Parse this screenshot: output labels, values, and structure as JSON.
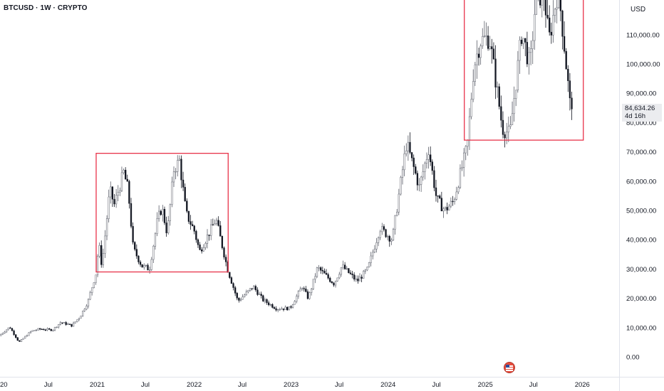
{
  "header": {
    "symbol_title": "BTCUSD · 1W · CRYPTO",
    "currency": "USD"
  },
  "price_tag": {
    "price": "84,634.26",
    "countdown": "4d 16h"
  },
  "colors": {
    "candle": "#131722",
    "candle_up": "#5d606b",
    "box": "#e8334a",
    "grid_text": "#131722",
    "tag_bg": "#ebecef"
  },
  "icons": {
    "event": "us-flag-icon"
  },
  "chart_data": {
    "type": "candlestick",
    "title": "BTCUSD · 1W · CRYPTO",
    "y_unit": "USD",
    "ylim": [
      -12000,
      126000
    ],
    "xlim": [
      "2020-01-01",
      "2026-05-01"
    ],
    "y_ticks": [
      0,
      10000,
      20000,
      30000,
      40000,
      50000,
      60000,
      70000,
      80000,
      90000,
      100000,
      110000
    ],
    "y_tick_labels": [
      "0.00",
      "10,000.00",
      "20,000.00",
      "30,000.00",
      "40,000.00",
      "50,000.00",
      "60,000.00",
      "70,000.00",
      "80,000.00",
      "90,000.00",
      "100,000.00",
      "110,000.00"
    ],
    "x_ticks": [
      {
        "date": "2020-01-01",
        "label": "2020"
      },
      {
        "date": "2020-07-01",
        "label": "Jul"
      },
      {
        "date": "2021-01-01",
        "label": "2021"
      },
      {
        "date": "2021-07-01",
        "label": "Jul"
      },
      {
        "date": "2022-01-01",
        "label": "2022"
      },
      {
        "date": "2022-07-01",
        "label": "Jul"
      },
      {
        "date": "2023-01-01",
        "label": "2023"
      },
      {
        "date": "2023-07-01",
        "label": "Jul"
      },
      {
        "date": "2024-01-01",
        "label": "2024"
      },
      {
        "date": "2024-07-01",
        "label": "Jul"
      },
      {
        "date": "2025-01-01",
        "label": "2025"
      },
      {
        "date": "2025-07-01",
        "label": "Jul"
      },
      {
        "date": "2026-01-01",
        "label": "2026"
      }
    ],
    "last_price": 84634.26,
    "price_path": [
      [
        "2020-01-01",
        7200
      ],
      [
        "2020-02-10",
        10200
      ],
      [
        "2020-03-16",
        5000
      ],
      [
        "2020-05-01",
        8800
      ],
      [
        "2020-06-01",
        9500
      ],
      [
        "2020-07-20",
        9200
      ],
      [
        "2020-08-20",
        11800
      ],
      [
        "2020-10-01",
        10700
      ],
      [
        "2020-11-01",
        13800
      ],
      [
        "2020-12-01",
        19000
      ],
      [
        "2021-01-01",
        29000
      ],
      [
        "2021-01-10",
        39000
      ],
      [
        "2021-01-22",
        31000
      ],
      [
        "2021-02-21",
        57000
      ],
      [
        "2021-03-10",
        52000
      ],
      [
        "2021-04-14",
        63000
      ],
      [
        "2021-05-01",
        57000
      ],
      [
        "2021-05-20",
        37000
      ],
      [
        "2021-06-22",
        31000
      ],
      [
        "2021-07-20",
        30000
      ],
      [
        "2021-08-20",
        47000
      ],
      [
        "2021-09-05",
        51000
      ],
      [
        "2021-09-25",
        42000
      ],
      [
        "2021-10-20",
        64000
      ],
      [
        "2021-11-10",
        67000
      ],
      [
        "2021-12-05",
        49000
      ],
      [
        "2022-01-05",
        43000
      ],
      [
        "2022-01-25",
        36000
      ],
      [
        "2022-03-28",
        47000
      ],
      [
        "2022-05-10",
        30000
      ],
      [
        "2022-06-18",
        19000
      ],
      [
        "2022-08-15",
        24000
      ],
      [
        "2022-09-20",
        19500
      ],
      [
        "2022-11-10",
        16500
      ],
      [
        "2022-12-31",
        16600
      ],
      [
        "2023-02-15",
        24000
      ],
      [
        "2023-03-10",
        20000
      ],
      [
        "2023-04-14",
        30500
      ],
      [
        "2023-06-15",
        25000
      ],
      [
        "2023-07-15",
        31000
      ],
      [
        "2023-09-10",
        25800
      ],
      [
        "2023-10-20",
        30000
      ],
      [
        "2023-12-05",
        44000
      ],
      [
        "2024-01-20",
        40000
      ],
      [
        "2024-03-14",
        73000
      ],
      [
        "2024-05-01",
        58000
      ],
      [
        "2024-06-05",
        71000
      ],
      [
        "2024-07-05",
        54000
      ],
      [
        "2024-08-05",
        50000
      ],
      [
        "2024-09-06",
        53000
      ],
      [
        "2024-10-29",
        72000
      ],
      [
        "2024-11-22",
        99000
      ],
      [
        "2024-12-17",
        108000
      ],
      [
        "2025-01-20",
        109000
      ],
      [
        "2025-02-10",
        96000
      ],
      [
        "2025-03-10",
        78000
      ],
      [
        "2025-04-07",
        76000
      ],
      [
        "2025-05-22",
        111000
      ],
      [
        "2025-06-22",
        99000
      ],
      [
        "2025-07-14",
        123000
      ],
      [
        "2025-08-14",
        124000
      ],
      [
        "2025-09-01",
        108000
      ],
      [
        "2025-10-06",
        126000
      ],
      [
        "2025-10-25",
        110000
      ],
      [
        "2025-11-21",
        84634
      ]
    ],
    "annotations": [
      {
        "type": "rectangle",
        "x": [
          "2020-12-28",
          "2022-05-09"
        ],
        "y": [
          29000,
          69500
        ],
        "color": "#e8334a"
      },
      {
        "type": "rectangle",
        "x": [
          "2024-10-14",
          "2026-01-05"
        ],
        "y": [
          74000,
          126000
        ],
        "color": "#e8334a"
      }
    ]
  }
}
